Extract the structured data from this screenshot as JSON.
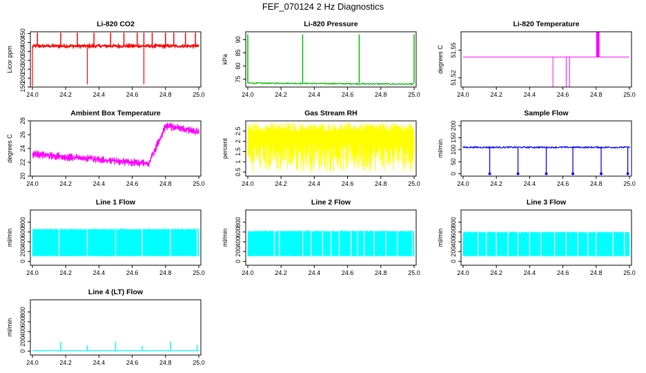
{
  "title": "FEF_070124  2 Hz Diagnostics",
  "chart_data": [
    {
      "type": "line",
      "title": "Li-820 CO2",
      "ylabel": "Licor ppm",
      "color": "#ff0000",
      "xlim": [
        24.0,
        25.0
      ],
      "ylim": [
        150,
        460
      ],
      "xticks": [
        "24.0",
        "24.2",
        "24.4",
        "24.6",
        "24.8",
        "25.0"
      ],
      "yticks": [
        150,
        200,
        250,
        300,
        350,
        400,
        450
      ],
      "baseline": 380,
      "spikes_up_at": [
        24.03,
        24.17,
        24.27,
        24.37,
        24.47,
        24.55,
        24.63,
        24.67,
        24.72,
        24.8,
        24.85,
        24.92,
        24.98
      ],
      "spikes_down_at": [
        24.0,
        24.33,
        24.67
      ],
      "pattern": "noisy_const"
    },
    {
      "type": "line",
      "title": "Li-820 Pressure",
      "ylabel": "kPa",
      "color": "#00bb00",
      "xlim": [
        24.0,
        25.0
      ],
      "ylim": [
        72,
        93
      ],
      "xticks": [
        "24.0",
        "24.2",
        "24.4",
        "24.6",
        "24.8",
        "25.0"
      ],
      "yticks": [
        75,
        80,
        85,
        90
      ],
      "baseline": 73.5,
      "spikes_up_at": [
        24.0,
        24.33,
        24.67,
        25.0
      ],
      "pattern": "flat_spikes"
    },
    {
      "type": "line",
      "title": "Li-820 Temperature",
      "ylabel": "degrees C",
      "color": "#ff00ff",
      "xlim": [
        24.0,
        25.0
      ],
      "ylim": [
        51.51,
        51.57
      ],
      "xticks": [
        "24.0",
        "24.2",
        "24.4",
        "24.6",
        "24.8",
        "25.0"
      ],
      "yticks": [
        51.52,
        51.55
      ],
      "ytick_labels": [
        "51.52",
        "51.55"
      ],
      "baseline": 51.5425,
      "block": [
        24.8,
        24.82
      ],
      "drops_at": [
        24.54,
        24.62,
        24.64
      ],
      "pattern": "temp"
    },
    {
      "type": "line",
      "title": "Ambient Box Temperature",
      "ylabel": "degrees C",
      "color": "#ff00ff",
      "xlim": [
        24.0,
        25.0
      ],
      "ylim": [
        20,
        28
      ],
      "xticks": [
        "24.0",
        "24.2",
        "24.4",
        "24.6",
        "24.8",
        "25.0"
      ],
      "yticks": [
        20,
        22,
        24,
        26,
        28
      ],
      "pattern": "ambient"
    },
    {
      "type": "line",
      "title": "Gas Stream RH",
      "ylabel": "percent",
      "color": "#ffff00",
      "xlim": [
        24.0,
        25.0
      ],
      "ylim": [
        0.3,
        3.0
      ],
      "xticks": [
        "24.0",
        "24.2",
        "24.4",
        "24.6",
        "24.8",
        "25.0"
      ],
      "yticks": [
        0.5,
        1.0,
        1.5,
        2.0,
        2.5
      ],
      "ytick_labels": [
        "0.5",
        "1",
        "1.5",
        "2",
        "2.5"
      ],
      "pattern": "rh"
    },
    {
      "type": "line",
      "title": "Sample Flow",
      "ylabel": "ml/min",
      "color": "#0000ff",
      "xlim": [
        24.0,
        25.0
      ],
      "ylim": [
        -10,
        220
      ],
      "xticks": [
        "24.0",
        "24.2",
        "24.4",
        "24.6",
        "24.8",
        "25.0"
      ],
      "yticks": [
        0,
        50,
        100,
        150,
        200
      ],
      "baseline": 110,
      "drops_at": [
        24.16,
        24.33,
        24.5,
        24.66,
        24.83,
        24.99
      ],
      "pattern": "flow_drops"
    },
    {
      "type": "line",
      "title": "Line 1 Flow",
      "ylabel": "ml/min",
      "color": "#00ffff",
      "xlim": [
        24.0,
        25.0
      ],
      "ylim": [
        -80,
        1050
      ],
      "xticks": [
        "24.0",
        "24.2",
        "24.4",
        "24.6",
        "24.8",
        "25.0"
      ],
      "yticks": [
        0,
        200,
        400,
        600,
        800
      ],
      "low": 100,
      "high": 650,
      "gaps_at": [
        24.16,
        24.33,
        24.5,
        24.66,
        24.83,
        24.99
      ],
      "pattern": "band"
    },
    {
      "type": "line",
      "title": "Line 2 Flow",
      "ylabel": "ml/min",
      "color": "#00ffff",
      "xlim": [
        24.0,
        25.0
      ],
      "ylim": [
        -80,
        1050
      ],
      "xticks": [
        "24.0",
        "24.2",
        "24.4",
        "24.6",
        "24.8",
        "25.0"
      ],
      "yticks": [
        0,
        200,
        400,
        600,
        800
      ],
      "low": 100,
      "high": 610,
      "gaps_at": [
        24.16,
        24.19,
        24.33,
        24.38,
        24.45,
        24.5,
        24.55,
        24.62,
        24.66,
        24.7,
        24.76,
        24.83,
        24.9,
        24.99
      ],
      "pattern": "band"
    },
    {
      "type": "line",
      "title": "Line 3 Flow",
      "ylabel": "ml/min",
      "color": "#00ffff",
      "xlim": [
        24.0,
        25.0
      ],
      "ylim": [
        -80,
        1050
      ],
      "xticks": [
        "24.0",
        "24.2",
        "24.4",
        "24.6",
        "24.8",
        "25.0"
      ],
      "yticks": [
        0,
        200,
        400,
        600,
        800
      ],
      "low": 100,
      "high": 590,
      "gaps_at": [
        24.09,
        24.14,
        24.2,
        24.27,
        24.33,
        24.4,
        24.47,
        24.55,
        24.62,
        24.69,
        24.75,
        24.8,
        24.9,
        24.97
      ],
      "pattern": "band"
    },
    {
      "type": "line",
      "title": "Line 4 (LT) Flow",
      "ylabel": "ml/min",
      "color": "#00ffff",
      "xlim": [
        24.0,
        25.0
      ],
      "ylim": [
        -80,
        1050
      ],
      "xticks": [
        "24.0",
        "24.2",
        "24.4",
        "24.6",
        "24.8",
        "25.0"
      ],
      "yticks": [
        0,
        200,
        400,
        600,
        800
      ],
      "baseline": 10,
      "spikes_up_at": [
        24.17,
        24.33,
        24.5,
        24.66,
        24.83,
        24.99
      ],
      "spike_heights": [
        180,
        110,
        180,
        100,
        180,
        120
      ],
      "pattern": "spikes"
    }
  ]
}
